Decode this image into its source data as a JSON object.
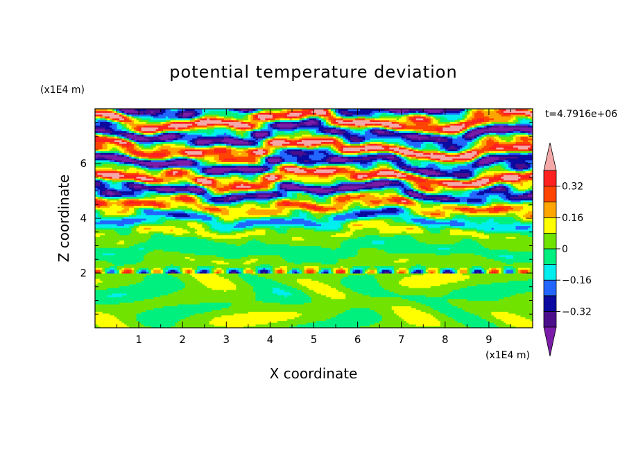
{
  "chart_data": {
    "type": "heatmap",
    "title": "potential temperature deviation",
    "xlabel": "X coordinate",
    "ylabel": "Z coordinate",
    "x_unit": "(x1E4 m)",
    "y_unit": "(x1E4 m)",
    "time_label": "t=4.7916e+06",
    "xlim": [
      0,
      10
    ],
    "ylim": [
      0,
      8
    ],
    "x_ticks": [
      "1",
      "2",
      "3",
      "4",
      "5",
      "6",
      "7",
      "8",
      "9"
    ],
    "y_ticks": [
      "2",
      "4",
      "6"
    ],
    "colorbar": {
      "levels": [
        -0.4,
        -0.32,
        -0.24,
        -0.16,
        -0.08,
        0,
        0.08,
        0.16,
        0.24,
        0.32,
        0.4
      ],
      "labels": [
        "0.32",
        "0.16",
        "0",
        "−0.16",
        "−0.32"
      ],
      "label_values": [
        0.32,
        0.16,
        0,
        -0.16,
        -0.32
      ],
      "colors_low_to_high": [
        "#4b0f8c",
        "#0a0aa0",
        "#2266ff",
        "#00eeee",
        "#00f07f",
        "#70e400",
        "#ffff00",
        "#ffa500",
        "#ff4400",
        "#ff2020"
      ],
      "under_color": "#7a1ca8",
      "over_color": "#f4a8a8",
      "extend": "both"
    },
    "field_description_levels": {
      "lower_layer_z_range": [
        0,
        2
      ],
      "lower_layer_dominant_values": [
        0,
        0.08
      ],
      "upper_band_values": [
        "over",
        "under"
      ]
    }
  }
}
